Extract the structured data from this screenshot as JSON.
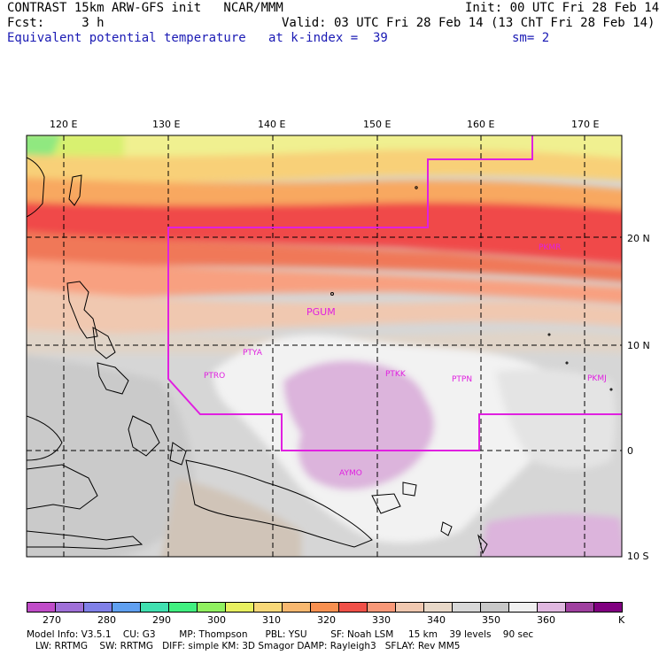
{
  "header": {
    "line1_left": "CONTRAST 15km ARW-GFS init   NCAR/MMM",
    "line1_right": "Init: 00 UTC Fri 28 Feb 14",
    "line2_left": "Fcst:     3 h",
    "line2_right": "Valid: 03 UTC Fri 28 Feb 14 (13 ChT Fri 28 Feb 14)",
    "field_name": "Equivalent potential temperature",
    "level_label": "at k-index =  39",
    "smooth_label": "sm= 2"
  },
  "axes": {
    "lon_labels": [
      "120 E",
      "130 E",
      "140 E",
      "150 E",
      "160 E",
      "170 E"
    ],
    "lat_labels": [
      "20 N",
      "10 N",
      "0",
      "10 S"
    ]
  },
  "stations": [
    {
      "id": "PKMR",
      "label": "PKMR"
    },
    {
      "id": "PGUM",
      "label": "PGUM"
    },
    {
      "id": "PTYA",
      "label": "PTYA"
    },
    {
      "id": "PTRO",
      "label": "PTRO"
    },
    {
      "id": "PTKK",
      "label": "PTKK"
    },
    {
      "id": "PTPN",
      "label": "PTPN"
    },
    {
      "id": "PKMJ",
      "label": "PKMJ"
    },
    {
      "id": "AYMO",
      "label": "AYMO"
    }
  ],
  "colorbar": {
    "labels": [
      "270",
      "280",
      "290",
      "300",
      "310",
      "320",
      "330",
      "340",
      "350",
      "360"
    ],
    "unit": "K",
    "colors": [
      "#c04cc8",
      "#a070d8",
      "#8080e8",
      "#60a0f0",
      "#40e0b0",
      "#40f080",
      "#90f060",
      "#e8f060",
      "#f8d878",
      "#f8b870",
      "#f89050",
      "#f05048",
      "#f89878",
      "#f0c8b0",
      "#e8d8c8",
      "#d8d8d8",
      "#c8c8c8",
      "#f0f0f0",
      "#e0b8e0",
      "#a040a0",
      "#800080"
    ]
  },
  "model_info": {
    "line1": "Model Info: V3.5.1    CU: G3        MP: Thompson      PBL: YSU        SF: Noah LSM     15 km    39 levels    90 sec",
    "line2": "LW: RRTMG    SW: RRTMG   DIFF: simple KM: 3D Smagor DAMP: Rayleigh3   SFLAY: Rev MM5"
  }
}
